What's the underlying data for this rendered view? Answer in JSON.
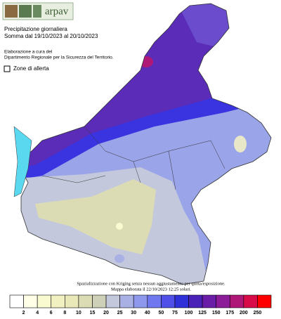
{
  "header": {
    "logo": "arpav"
  },
  "title": "Precipitazione giornaliera",
  "subtitle": "Somma dal 19/10/2023 al 20/10/2023",
  "credit": [
    "Elaborazione a cura del",
    "Dipartimento Regionale per la Sicurezza del Territorio."
  ],
  "layer_toggle": "Zone di allerta",
  "footer": [
    "Spazializzazione con Kriging senza nessun aggiustamento per quota/esposizione.",
    "Mappa elaborata il 22/10/2023 12:25 solari."
  ],
  "legend": {
    "thresholds": [
      2,
      4,
      6,
      8,
      10,
      15,
      20,
      25,
      30,
      40,
      50,
      75,
      100,
      125,
      150,
      175,
      200,
      250
    ],
    "colors": [
      "#ffffff",
      "#ffffe8",
      "#fafad0",
      "#f0f0c0",
      "#e8e8b8",
      "#dcdcb4",
      "#cfd0b8",
      "#c4c8dc",
      "#a8b0e4",
      "#8e98ec",
      "#7078f0",
      "#5050e8",
      "#3030d8",
      "#4a22b8",
      "#6a1ea8",
      "#8c1c98",
      "#b01878",
      "#d80c48",
      "#ff0000"
    ]
  }
}
